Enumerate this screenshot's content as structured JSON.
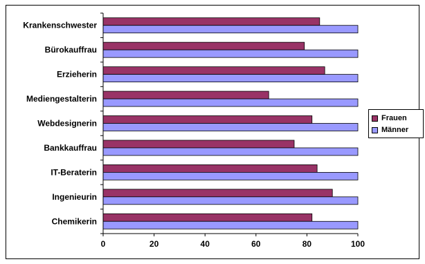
{
  "chart_data": {
    "type": "bar",
    "orientation": "horizontal",
    "categories": [
      "Krankenschwester",
      "Bürokauffrau",
      "Erzieherin",
      "Mediengestalterin",
      "Webdesignerin",
      "Bankkauffrau",
      "IT-Beraterin",
      "Ingenieurin",
      "Chemikerin"
    ],
    "series": [
      {
        "name": "Frauen",
        "color": "#993366",
        "values": [
          85,
          79,
          87,
          65,
          82,
          75,
          84,
          90,
          82
        ]
      },
      {
        "name": "Männer",
        "color": "#9999ff",
        "values": [
          100,
          100,
          100,
          100,
          100,
          100,
          100,
          100,
          100
        ]
      }
    ],
    "xlim": [
      0,
      100
    ],
    "xticks": [
      0,
      20,
      40,
      60,
      80,
      100
    ],
    "xtick_labels": [
      "0",
      "20",
      "40",
      "60",
      "80",
      "100"
    ],
    "grid": false,
    "legend_position": "right"
  }
}
